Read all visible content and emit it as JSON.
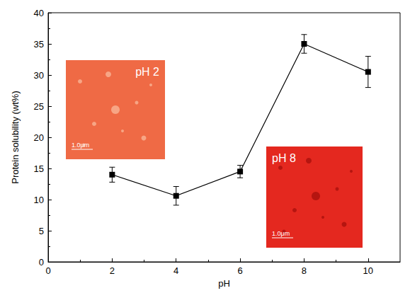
{
  "chart_data": {
    "type": "line",
    "x_label": "pH",
    "y_label": "Protein solubility (wt%)",
    "x": [
      2,
      4,
      6,
      8,
      10
    ],
    "values": [
      14.0,
      10.6,
      14.5,
      35.0,
      30.5
    ],
    "errors": [
      1.2,
      1.5,
      1.0,
      1.5,
      2.5
    ],
    "color": "#000000",
    "marker": "square",
    "line_style": "solid",
    "grid": false,
    "xlim": [
      0,
      11
    ],
    "xticks": [
      0,
      2,
      4,
      6,
      8,
      10
    ],
    "ylim": [
      0,
      40
    ],
    "yticks": [
      0,
      5,
      10,
      15,
      20,
      25,
      30,
      35,
      40
    ],
    "annotations": [
      {
        "text": "pH 2",
        "scale_bar": "1.0μm"
      },
      {
        "text": "pH 8",
        "scale_bar": "1.0μm"
      }
    ]
  }
}
